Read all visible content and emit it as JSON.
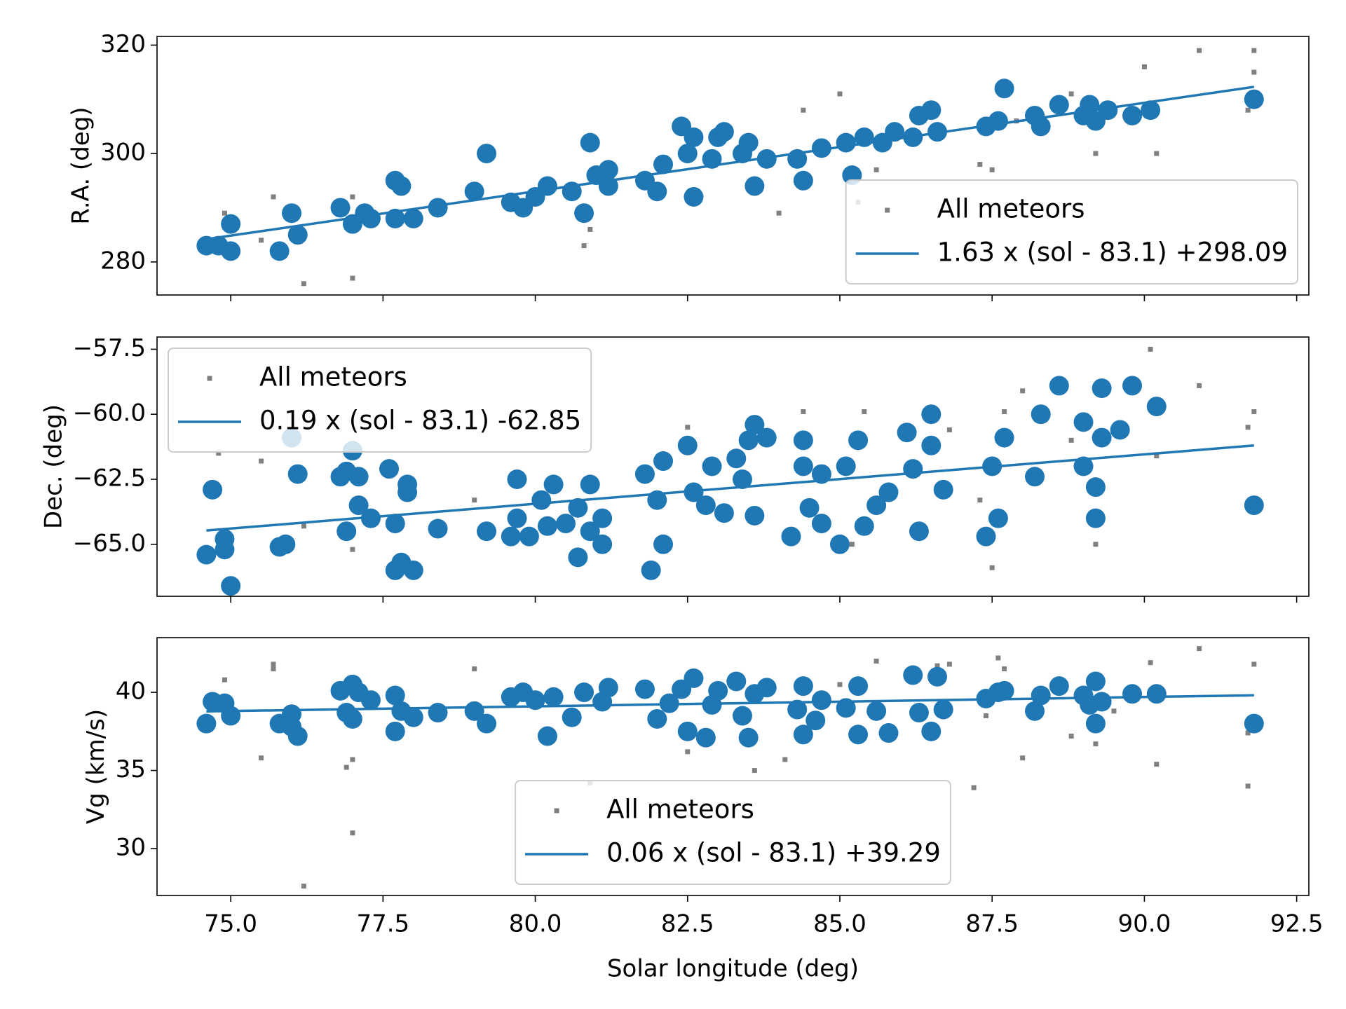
{
  "chart_data": [
    {
      "type": "scatter",
      "ylabel": "R.A. (deg)",
      "xlim": [
        73.79,
        92.7
      ],
      "ylim": [
        273.9,
        321.6
      ],
      "yticks": [
        280,
        300,
        320
      ],
      "legend": "lower right",
      "series": [
        {
          "name": "All meteors",
          "color": "#808080",
          "marker": "square",
          "x": [
            74.9,
            75.5,
            75.7,
            76.2,
            77.0,
            77.0,
            80.8,
            80.9,
            84.0,
            84.4,
            85.0,
            85.3,
            85.6,
            87.3,
            87.5,
            87.9,
            88.8,
            89.2,
            90.0,
            90.2,
            90.9,
            91.7,
            91.8,
            91.8
          ],
          "values": [
            289,
            284,
            292,
            276,
            277,
            292,
            283,
            286,
            289,
            308,
            311,
            291,
            297,
            298,
            297,
            306,
            311,
            300,
            316,
            300,
            319,
            308,
            315,
            319
          ]
        },
        {
          "color": "#1f77b4",
          "marker": "circle",
          "x": [
            74.6,
            74.8,
            75.0,
            75.0,
            75.8,
            76.0,
            76.1,
            76.8,
            77.0,
            77.2,
            77.3,
            77.7,
            77.7,
            77.8,
            78.0,
            78.4,
            79.0,
            79.2,
            79.6,
            79.8,
            80.0,
            80.2,
            80.6,
            80.8,
            80.9,
            81.0,
            81.2,
            81.2,
            81.8,
            82.0,
            82.1,
            82.4,
            82.5,
            82.6,
            82.6,
            82.9,
            83.0,
            83.1,
            83.4,
            83.5,
            83.6,
            83.8,
            84.3,
            84.4,
            84.7,
            85.1,
            85.2,
            85.4,
            85.7,
            85.9,
            86.2,
            86.3,
            86.5,
            86.6,
            87.4,
            87.6,
            87.7,
            88.2,
            88.3,
            88.6,
            89.0,
            89.1,
            89.2,
            89.4,
            89.8,
            90.1,
            91.8
          ],
          "values": [
            283,
            283,
            282,
            287,
            282,
            289,
            285,
            290,
            287,
            289,
            288,
            288,
            295,
            294,
            288,
            290,
            293,
            300,
            291,
            290,
            292,
            294,
            293,
            289,
            302,
            296,
            297,
            294,
            295,
            293,
            298,
            305,
            300,
            303,
            292,
            299,
            303,
            304,
            300,
            302,
            294,
            299,
            299,
            295,
            301,
            302,
            296,
            303,
            302,
            304,
            303,
            307,
            308,
            304,
            305,
            306,
            312,
            307,
            305,
            309,
            307,
            309,
            306,
            308,
            307,
            308,
            310
          ]
        },
        {
          "name": "1.63 x (sol - 83.1) +298.09",
          "color": "#1f77b4",
          "marker": "line",
          "x": [
            74.6,
            91.8
          ],
          "values": [
            284.2,
            312.3
          ]
        }
      ]
    },
    {
      "type": "scatter",
      "ylabel": "Dec. (deg)",
      "xlim": [
        73.79,
        92.7
      ],
      "ylim": [
        -67.0,
        -57.03
      ],
      "yticks": [
        {
          "value": -57.5,
          "label": "−57.5"
        },
        {
          "value": -60,
          "label": "−60.0"
        },
        {
          "value": -62.5,
          "label": "−62.5"
        },
        {
          "value": -65,
          "label": "−65.0"
        }
      ],
      "legend": "upper left",
      "series": [
        {
          "name": "All meteors",
          "color": "#808080",
          "marker": "square",
          "x": [
            74.8,
            75.5,
            76.2,
            77.0,
            79.0,
            82.5,
            84.4,
            85.2,
            85.4,
            86.8,
            87.3,
            87.5,
            87.7,
            88.0,
            88.8,
            89.2,
            90.1,
            90.2,
            90.9,
            91.7,
            91.8
          ],
          "values": [
            -61.5,
            -61.8,
            -64.3,
            -65.2,
            -63.3,
            -60.5,
            -59.9,
            -65.0,
            -59.9,
            -60.6,
            -63.3,
            -65.9,
            -59.9,
            -59.1,
            -61.0,
            -65.0,
            -57.5,
            -61.6,
            -58.9,
            -60.5,
            -59.9
          ]
        },
        {
          "color": "#1f77b4",
          "marker": "circle",
          "x": [
            74.6,
            74.7,
            74.9,
            74.9,
            75.0,
            75.8,
            75.9,
            76.0,
            76.1,
            76.8,
            76.9,
            76.9,
            77.0,
            77.1,
            77.1,
            77.3,
            77.6,
            77.7,
            77.7,
            77.8,
            77.9,
            77.9,
            78.0,
            78.4,
            79.2,
            79.6,
            79.7,
            79.7,
            79.9,
            80.1,
            80.2,
            80.3,
            80.5,
            80.7,
            80.7,
            80.9,
            80.9,
            81.1,
            81.1,
            81.8,
            81.9,
            82.0,
            82.1,
            82.1,
            82.5,
            82.6,
            82.8,
            82.9,
            83.1,
            83.3,
            83.4,
            83.5,
            83.6,
            83.6,
            83.8,
            84.2,
            84.4,
            84.4,
            84.5,
            84.7,
            84.7,
            85.0,
            85.1,
            85.3,
            85.4,
            85.6,
            85.8,
            86.1,
            86.2,
            86.3,
            86.5,
            86.5,
            86.7,
            87.4,
            87.5,
            87.6,
            87.7,
            88.2,
            88.3,
            88.6,
            89.0,
            89.0,
            89.2,
            89.2,
            89.3,
            89.3,
            89.6,
            89.8,
            90.2,
            91.8
          ],
          "values": [
            -65.4,
            -62.9,
            -64.8,
            -65.2,
            -66.6,
            -65.1,
            -65.0,
            -60.9,
            -62.3,
            -62.4,
            -62.2,
            -64.5,
            -61.4,
            -62.4,
            -63.5,
            -64.0,
            -62.1,
            -66.0,
            -64.2,
            -65.7,
            -62.7,
            -63.0,
            -66.0,
            -64.4,
            -64.5,
            -64.7,
            -62.5,
            -64.0,
            -64.7,
            -63.3,
            -64.3,
            -62.7,
            -64.2,
            -63.6,
            -65.5,
            -62.7,
            -64.5,
            -64.0,
            -65.0,
            -62.3,
            -66.0,
            -63.3,
            -61.8,
            -65.0,
            -61.2,
            -63.0,
            -63.5,
            -62.0,
            -63.8,
            -61.7,
            -62.5,
            -61.0,
            -60.4,
            -63.9,
            -60.9,
            -64.7,
            -61.0,
            -62.0,
            -63.6,
            -62.3,
            -64.2,
            -65.0,
            -62.0,
            -61.0,
            -64.3,
            -63.5,
            -63.0,
            -60.7,
            -62.1,
            -64.5,
            -61.2,
            -60.0,
            -62.9,
            -64.7,
            -62.0,
            -64.0,
            -60.9,
            -62.4,
            -60.0,
            -58.9,
            -60.3,
            -62.0,
            -64.0,
            -62.8,
            -59.0,
            -60.9,
            -60.6,
            -58.9,
            -59.7,
            -63.5
          ]
        },
        {
          "name": "0.19 x (sol - 83.1) -62.85",
          "color": "#1f77b4",
          "marker": "line",
          "x": [
            74.6,
            91.8
          ],
          "values": [
            -64.47,
            -61.2
          ]
        }
      ]
    },
    {
      "type": "scatter",
      "ylabel": "Vg (km/s)",
      "xlabel": "Solar longitude (deg)",
      "xlim": [
        73.79,
        92.7
      ],
      "ylim": [
        27.0,
        43.5
      ],
      "yticks": [
        30,
        35,
        40
      ],
      "xticks": [
        {
          "value": 75,
          "label": "75.0"
        },
        {
          "value": 77.5,
          "label": "77.5"
        },
        {
          "value": 80,
          "label": "80.0"
        },
        {
          "value": 82.5,
          "label": "82.5"
        },
        {
          "value": 85,
          "label": "85.0"
        },
        {
          "value": 87.5,
          "label": "87.5"
        },
        {
          "value": 90,
          "label": "90.0"
        },
        {
          "value": 92.5,
          "label": "92.5"
        }
      ],
      "legend": "lower center",
      "series": [
        {
          "name": "All meteors",
          "color": "#808080",
          "marker": "square",
          "x": [
            74.9,
            75.5,
            75.7,
            75.7,
            76.2,
            76.9,
            77.0,
            77.0,
            79.0,
            80.9,
            82.5,
            83.6,
            84.1,
            85.0,
            85.6,
            86.6,
            86.8,
            87.2,
            87.4,
            87.6,
            87.7,
            88.0,
            88.8,
            89.2,
            89.5,
            90.1,
            90.2,
            90.9,
            91.7,
            91.7,
            91.8
          ],
          "values": [
            40.8,
            35.8,
            41.8,
            41.5,
            27.6,
            35.2,
            35.7,
            31.0,
            41.5,
            34.2,
            36.2,
            35.0,
            35.7,
            40.5,
            42.0,
            41.7,
            41.8,
            33.9,
            38.5,
            42.2,
            41.5,
            35.8,
            37.2,
            36.7,
            38.8,
            41.9,
            35.4,
            42.8,
            37.4,
            34.0,
            41.8
          ]
        },
        {
          "color": "#1f77b4",
          "marker": "circle",
          "x": [
            74.6,
            74.7,
            74.9,
            75.0,
            75.8,
            76.0,
            76.0,
            76.1,
            76.8,
            76.9,
            77.0,
            77.0,
            77.1,
            77.3,
            77.7,
            77.7,
            77.8,
            78.0,
            78.4,
            79.0,
            79.2,
            79.6,
            79.8,
            80.0,
            80.2,
            80.3,
            80.6,
            80.8,
            81.1,
            81.2,
            81.8,
            82.0,
            82.2,
            82.4,
            82.5,
            82.6,
            82.8,
            82.9,
            83.0,
            83.3,
            83.4,
            83.5,
            83.6,
            83.8,
            84.3,
            84.4,
            84.4,
            84.6,
            84.7,
            85.1,
            85.3,
            85.3,
            85.6,
            85.8,
            86.2,
            86.3,
            86.5,
            86.6,
            86.7,
            87.4,
            87.6,
            87.7,
            88.2,
            88.3,
            88.6,
            89.0,
            89.1,
            89.2,
            89.2,
            89.3,
            89.8,
            90.2,
            91.8
          ],
          "values": [
            38.0,
            39.4,
            39.3,
            38.5,
            38.0,
            37.8,
            38.6,
            37.2,
            40.1,
            38.7,
            40.5,
            38.3,
            40.0,
            39.5,
            37.5,
            39.8,
            38.8,
            38.4,
            38.7,
            38.8,
            38.0,
            39.7,
            40.0,
            39.5,
            37.2,
            39.7,
            38.4,
            40.0,
            39.4,
            40.3,
            40.2,
            38.3,
            39.3,
            40.2,
            37.5,
            40.9,
            37.1,
            39.2,
            40.1,
            40.7,
            38.5,
            37.1,
            39.9,
            40.3,
            38.9,
            40.4,
            37.3,
            38.2,
            39.5,
            39.0,
            40.4,
            37.3,
            38.8,
            37.4,
            41.1,
            38.7,
            37.5,
            41.0,
            38.9,
            39.6,
            40.0,
            40.1,
            38.8,
            39.8,
            40.4,
            39.8,
            39.2,
            38.0,
            40.7,
            39.4,
            39.9,
            39.9,
            38.0
          ]
        },
        {
          "name": "0.06 x (sol - 83.1) +39.29",
          "color": "#1f77b4",
          "marker": "line",
          "x": [
            74.6,
            91.8
          ],
          "values": [
            38.78,
            39.81
          ]
        }
      ]
    }
  ]
}
